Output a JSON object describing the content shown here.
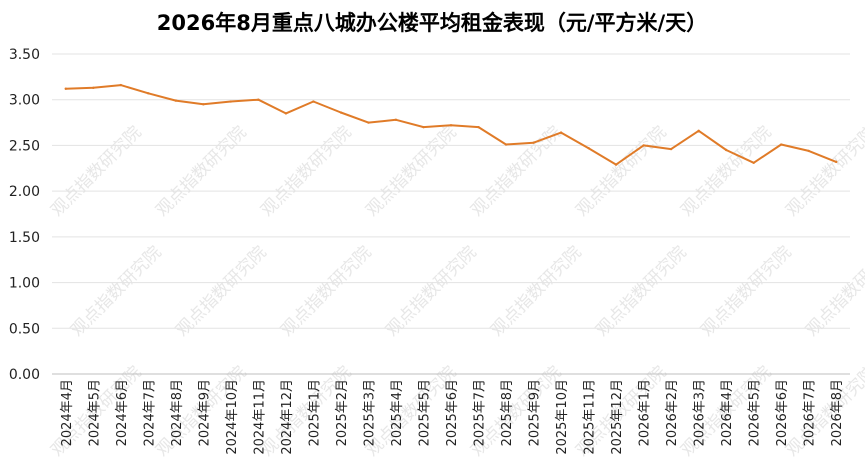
{
  "chart_data": {
    "type": "line",
    "title": "2026年8月重点八城办公楼平均租金表现（元/平方米/天）",
    "xlabel": "",
    "ylabel": "",
    "ylim": [
      0,
      3.5
    ],
    "yticks": [
      "0.00",
      "0.50",
      "1.00",
      "1.50",
      "2.00",
      "2.50",
      "3.00",
      "3.50"
    ],
    "grid": true,
    "legend": "none",
    "line_color": "#E07B28",
    "categories": [
      "2024年4月",
      "2024年5月",
      "2024年6月",
      "2024年7月",
      "2024年8月",
      "2024年9月",
      "2024年10月",
      "2024年11月",
      "2024年12月",
      "2025年1月",
      "2025年2月",
      "2025年3月",
      "2025年4月",
      "2025年5月",
      "2025年6月",
      "2025年7月",
      "2025年8月",
      "2025年9月",
      "2025年10月",
      "2025年11月",
      "2025年12月",
      "2026年1月",
      "2026年2月",
      "2026年3月",
      "2026年4月",
      "2026年5月",
      "2026年6月",
      "2026年7月",
      "2026年8月"
    ],
    "series": [
      {
        "values": [
          3.12,
          3.13,
          3.16,
          3.07,
          2.99,
          2.95,
          2.98,
          3.0,
          2.85,
          2.98,
          2.86,
          2.75,
          2.78,
          2.7,
          2.72,
          2.7,
          2.51,
          2.53,
          2.64,
          2.47,
          2.29,
          2.5,
          2.46,
          2.66,
          2.45,
          2.31,
          2.51,
          2.44,
          2.32
        ]
      }
    ]
  },
  "watermark": "观点指数研究院"
}
